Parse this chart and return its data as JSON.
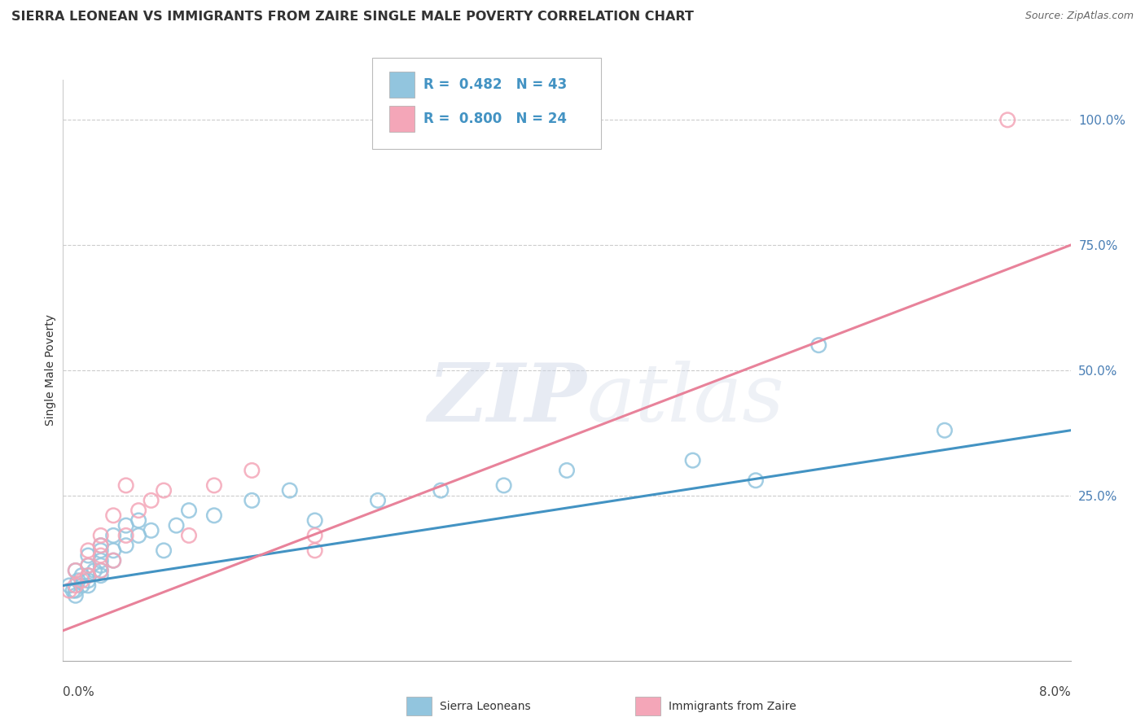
{
  "title": "SIERRA LEONEAN VS IMMIGRANTS FROM ZAIRE SINGLE MALE POVERTY CORRELATION CHART",
  "source": "Source: ZipAtlas.com",
  "ylabel": "Single Male Poverty",
  "legend_blue_label": "Sierra Leoneans",
  "legend_pink_label": "Immigrants from Zaire",
  "ytick_labels": [
    "25.0%",
    "50.0%",
    "75.0%",
    "100.0%"
  ],
  "ytick_values": [
    0.25,
    0.5,
    0.75,
    1.0
  ],
  "xmin": 0.0,
  "xmax": 0.08,
  "ymin": -0.08,
  "ymax": 1.08,
  "blue_color": "#92c5de",
  "pink_color": "#f4a6b8",
  "blue_line_color": "#4393c3",
  "pink_line_color": "#e8829a",
  "blue_r": "0.482",
  "blue_n": "43",
  "pink_r": "0.800",
  "pink_n": "24",
  "watermark_zip": "ZIP",
  "watermark_atlas": "atlas",
  "blue_x": [
    0.0005,
    0.0008,
    0.001,
    0.001,
    0.001,
    0.0012,
    0.0015,
    0.0015,
    0.002,
    0.002,
    0.002,
    0.002,
    0.002,
    0.0025,
    0.003,
    0.003,
    0.003,
    0.003,
    0.003,
    0.003,
    0.004,
    0.004,
    0.004,
    0.005,
    0.005,
    0.006,
    0.006,
    0.007,
    0.008,
    0.009,
    0.01,
    0.012,
    0.015,
    0.018,
    0.02,
    0.025,
    0.03,
    0.035,
    0.04,
    0.05,
    0.055,
    0.06,
    0.07
  ],
  "blue_y": [
    0.07,
    0.06,
    0.05,
    0.06,
    0.1,
    0.08,
    0.07,
    0.09,
    0.07,
    0.08,
    0.09,
    0.11,
    0.13,
    0.1,
    0.09,
    0.1,
    0.11,
    0.12,
    0.14,
    0.15,
    0.12,
    0.14,
    0.17,
    0.15,
    0.19,
    0.17,
    0.2,
    0.18,
    0.14,
    0.19,
    0.22,
    0.21,
    0.24,
    0.26,
    0.2,
    0.24,
    0.26,
    0.27,
    0.3,
    0.32,
    0.28,
    0.55,
    0.38
  ],
  "pink_x": [
    0.0005,
    0.001,
    0.001,
    0.0015,
    0.002,
    0.002,
    0.002,
    0.003,
    0.003,
    0.003,
    0.003,
    0.004,
    0.004,
    0.005,
    0.005,
    0.006,
    0.007,
    0.008,
    0.01,
    0.012,
    0.015,
    0.02,
    0.02,
    0.075
  ],
  "pink_y": [
    0.06,
    0.07,
    0.1,
    0.08,
    0.09,
    0.11,
    0.14,
    0.1,
    0.13,
    0.15,
    0.17,
    0.12,
    0.21,
    0.17,
    0.27,
    0.22,
    0.24,
    0.26,
    0.17,
    0.27,
    0.3,
    0.14,
    0.17,
    1.0
  ],
  "blue_trend_x": [
    0.0,
    0.08
  ],
  "blue_trend_y": [
    0.07,
    0.38
  ],
  "pink_trend_x": [
    0.0,
    0.08
  ],
  "pink_trend_y": [
    -0.02,
    0.75
  ]
}
